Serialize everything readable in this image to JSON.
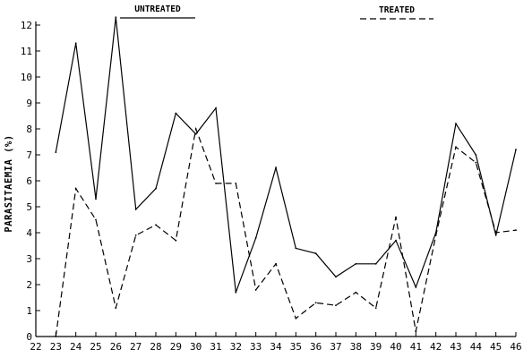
{
  "chart_data": {
    "type": "line",
    "title": "",
    "xlabel": "",
    "ylabel": "PARASITAEMIA (%)",
    "xlim": [
      22,
      46
    ],
    "ylim": [
      0,
      12
    ],
    "x_ticks": [
      22,
      23,
      24,
      25,
      26,
      27,
      28,
      29,
      30,
      31,
      32,
      33,
      34,
      35,
      36,
      37,
      38,
      39,
      40,
      41,
      42,
      43,
      44,
      45,
      46
    ],
    "y_ticks": [
      0,
      1,
      2,
      3,
      4,
      5,
      6,
      7,
      8,
      9,
      10,
      11,
      12
    ],
    "grid": false,
    "legend_position": "top",
    "series": [
      {
        "name": "UNTREATED",
        "line_style": "solid",
        "color": "#000000",
        "x": [
          23,
          24,
          25,
          26,
          27,
          28,
          29,
          30,
          31,
          32,
          33,
          34,
          35,
          36,
          37,
          38,
          39,
          40,
          41,
          42,
          43,
          44,
          45,
          46
        ],
        "values": [
          7.1,
          11.3,
          5.3,
          12.3,
          4.9,
          5.7,
          8.6,
          7.8,
          8.8,
          1.7,
          3.8,
          6.5,
          3.4,
          3.2,
          2.3,
          2.8,
          2.8,
          3.7,
          1.9,
          4.0,
          8.2,
          7.0,
          3.9,
          7.2
        ]
      },
      {
        "name": "TREATED",
        "line_style": "dashed",
        "color": "#000000",
        "x": [
          23,
          24,
          25,
          26,
          27,
          28,
          29,
          30,
          31,
          32,
          33,
          34,
          35,
          36,
          37,
          38,
          39,
          40,
          41,
          42,
          43,
          44,
          45,
          46
        ],
        "values": [
          0.0,
          5.7,
          4.5,
          1.1,
          3.9,
          4.3,
          3.7,
          8.0,
          5.9,
          5.9,
          1.8,
          2.8,
          0.7,
          1.3,
          1.2,
          1.7,
          1.1,
          4.6,
          0.2,
          3.9,
          7.3,
          6.7,
          4.0,
          4.1
        ]
      }
    ]
  }
}
